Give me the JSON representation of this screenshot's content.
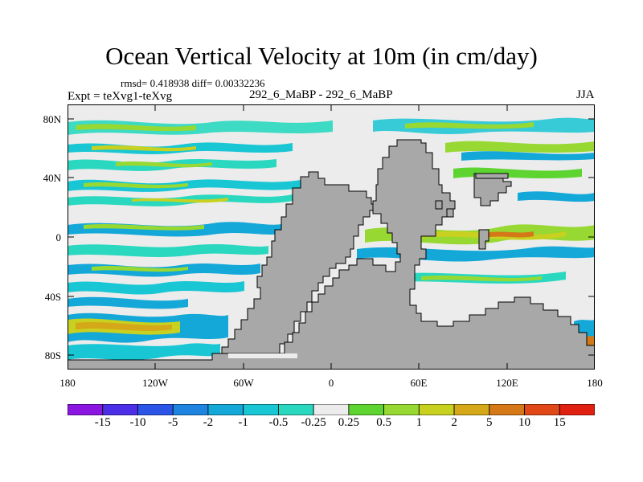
{
  "title": "Ocean Vertical Velocity at 10m (in cm/day)",
  "stats": "rmsd= 0.418938 diff= 0.00332236",
  "experiment": "Expt = teXvg1-teXvg",
  "case_label": "292_6_MaBP - 292_6_MaBP",
  "season": "JJA",
  "lat_ticks": [
    "80N",
    "40N",
    "0",
    "40S",
    "80S"
  ],
  "lon_ticks": [
    "180",
    "120W",
    "60W",
    "0",
    "60E",
    "120E",
    "180"
  ],
  "colorbar": {
    "labels": [
      "-15",
      "-10",
      "-5",
      "-2",
      "-1",
      "-0.5",
      "-0.25",
      "0.25",
      "0.5",
      "1",
      "2",
      "5",
      "10",
      "15"
    ],
    "colors": [
      "#8a16e0",
      "#4b2ee6",
      "#2c55e8",
      "#1e84e0",
      "#14a8d8",
      "#18c6d4",
      "#2ad8c0",
      "#ececec",
      "#5ed430",
      "#98d832",
      "#c8d020",
      "#d4a818",
      "#d47818",
      "#e04818",
      "#e02010"
    ]
  },
  "colors": {
    "land": "#a8a8a8",
    "ocean_neutral": "#ececec",
    "frame": "#000000"
  }
}
